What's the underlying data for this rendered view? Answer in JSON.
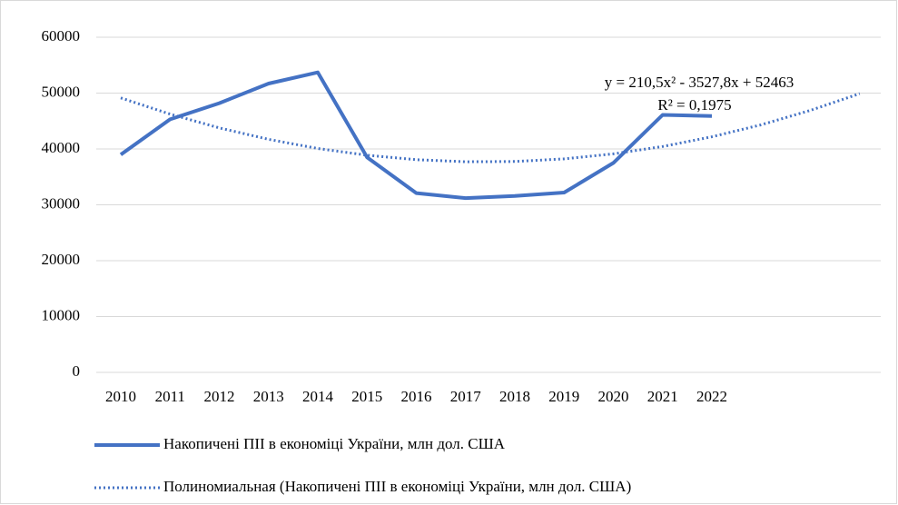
{
  "chart_data": {
    "type": "line",
    "categories": [
      "2010",
      "2011",
      "2012",
      "2013",
      "2014",
      "2015",
      "2016",
      "2017",
      "2018",
      "2019",
      "2020",
      "2021",
      "2022",
      null,
      null,
      null
    ],
    "series": [
      {
        "name": "Накопичені ПІІ в економіці України, млн дол. США",
        "color": "#4472c4",
        "line_style": "solid",
        "values": [
          39000,
          45300,
          48200,
          51700,
          53700,
          38500,
          32100,
          31200,
          31600,
          32200,
          37500,
          46100,
          45900,
          null,
          null,
          null
        ]
      },
      {
        "name": "Полиномиальная (Накопичені ПІІ в економіці України, млн дол. США)",
        "color": "#4472c4",
        "line_style": "dotted",
        "values": [
          49145.7,
          46249.4,
          43774.1,
          41719.8,
          40086.5,
          38874.2,
          38082.9,
          37712.6,
          37763.3,
          38235,
          39127.7,
          40441.4,
          42176.1,
          44331.8,
          46908.5,
          49906.2
        ]
      }
    ],
    "annotations": [
      "y = 210,5x² - 3527,8x + 52463",
      "R² = 0,1975"
    ],
    "ylim": [
      0,
      60000
    ],
    "yticks": [
      0,
      10000,
      20000,
      30000,
      40000,
      50000,
      60000
    ],
    "grid": true,
    "legend": "bottom"
  }
}
